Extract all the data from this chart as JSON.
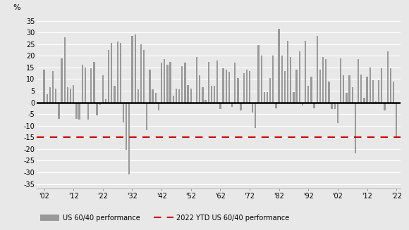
{
  "years": [
    1902,
    1903,
    1904,
    1905,
    1906,
    1907,
    1908,
    1909,
    1910,
    1911,
    1912,
    1913,
    1914,
    1915,
    1916,
    1917,
    1918,
    1919,
    1920,
    1921,
    1922,
    1923,
    1924,
    1925,
    1926,
    1927,
    1928,
    1929,
    1930,
    1931,
    1932,
    1933,
    1934,
    1935,
    1936,
    1937,
    1938,
    1939,
    1940,
    1941,
    1942,
    1943,
    1944,
    1945,
    1946,
    1947,
    1948,
    1949,
    1950,
    1951,
    1952,
    1953,
    1954,
    1955,
    1956,
    1957,
    1958,
    1959,
    1960,
    1961,
    1962,
    1963,
    1964,
    1965,
    1966,
    1967,
    1968,
    1969,
    1970,
    1971,
    1972,
    1973,
    1974,
    1975,
    1976,
    1977,
    1978,
    1979,
    1980,
    1981,
    1982,
    1983,
    1984,
    1985,
    1986,
    1987,
    1988,
    1989,
    1990,
    1991,
    1992,
    1993,
    1994,
    1995,
    1996,
    1997,
    1998,
    1999,
    2000,
    2001,
    2002,
    2003,
    2004,
    2005,
    2006,
    2007,
    2008,
    2009,
    2010,
    2011,
    2012,
    2013,
    2014,
    2015,
    2016,
    2017,
    2018,
    2019,
    2020,
    2021,
    2022
  ],
  "values": [
    14.0,
    3.5,
    6.5,
    13.5,
    6.0,
    -7.0,
    19.0,
    28.0,
    6.5,
    6.0,
    7.5,
    -7.0,
    -7.5,
    16.0,
    15.0,
    -7.5,
    14.5,
    17.5,
    -5.5,
    -1.0,
    11.5,
    1.5,
    22.5,
    25.5,
    7.0,
    26.0,
    25.5,
    -8.5,
    -20.5,
    -31.0,
    28.5,
    29.0,
    5.5,
    25.0,
    22.5,
    -12.0,
    14.0,
    5.5,
    4.0,
    -3.5,
    17.0,
    18.5,
    16.0,
    17.5,
    3.0,
    6.0,
    5.5,
    15.5,
    17.0,
    7.5,
    6.0,
    -0.5,
    19.5,
    11.5,
    6.5,
    1.0,
    17.5,
    7.0,
    7.0,
    18.0,
    -3.0,
    14.5,
    14.0,
    13.0,
    -2.0,
    17.0,
    10.5,
    -3.5,
    12.5,
    14.0,
    13.5,
    -4.5,
    -11.0,
    24.5,
    20.0,
    4.5,
    4.5,
    10.5,
    20.0,
    -2.5,
    31.5,
    20.0,
    13.5,
    26.5,
    19.5,
    4.5,
    14.0,
    22.0,
    -1.5,
    26.5,
    7.0,
    11.0,
    -2.5,
    28.5,
    14.0,
    19.5,
    18.5,
    9.0,
    -3.0,
    -3.0,
    -9.0,
    19.0,
    11.5,
    4.0,
    11.5,
    6.5,
    -22.0,
    18.5,
    12.0,
    2.0,
    11.0,
    15.0,
    9.5,
    0.5,
    9.5,
    14.5,
    -3.5,
    22.0,
    14.5,
    9.0,
    -15.0
  ],
  "bar_color": "#999999",
  "zero_line_color": "#000000",
  "ref_line_value": -15.0,
  "ref_line_color": "#cc0000",
  "yticks": [
    -35,
    -30,
    -25,
    -20,
    -15,
    -10,
    -5,
    0,
    5,
    10,
    15,
    20,
    25,
    30,
    35
  ],
  "xtick_years": [
    1902,
    1912,
    1922,
    1932,
    1942,
    1952,
    1962,
    1972,
    1982,
    1992,
    2002,
    2012,
    2022
  ],
  "xtick_labels": [
    "'02",
    "'12",
    "'22",
    "'32",
    "'42",
    "'52",
    "'62",
    "'72",
    "'82",
    "'92",
    "'02",
    "'12",
    "'22"
  ],
  "ylabel": "%",
  "ylim": [
    -37,
    37
  ],
  "xlim": [
    1899.5,
    2023.5
  ],
  "legend_bar_label": "US 60/40 performance",
  "legend_line_label": "2022 YTD US 60/40 performance",
  "bg_color": "#e8e8e8",
  "grid_color": "#ffffff",
  "bar_width": 0.55,
  "figsize": [
    5.8,
    3.27
  ],
  "dpi": 100
}
